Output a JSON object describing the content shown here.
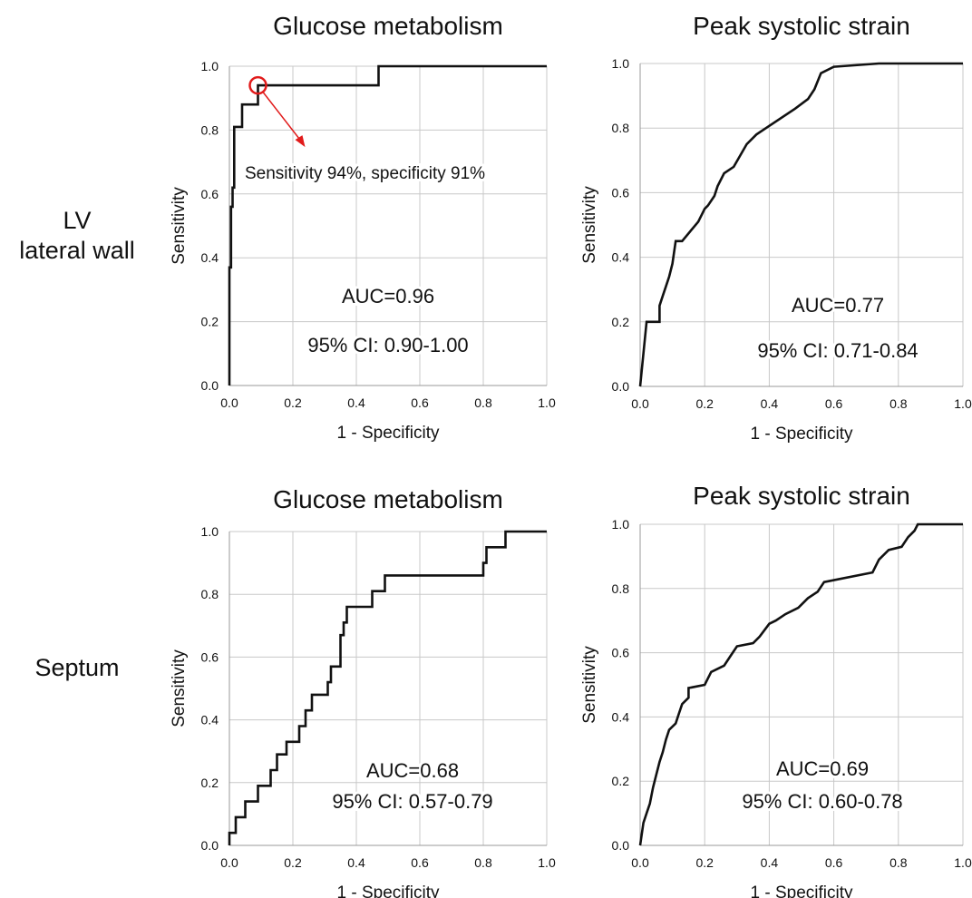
{
  "row_labels": {
    "row1": [
      "LV",
      "lateral wall"
    ],
    "row2": "Septum"
  },
  "colors": {
    "curve": "#111111",
    "grid": "#c8c8c8",
    "highlight": "#e11b1b"
  },
  "chart_data": [
    {
      "type": "line",
      "title": "Glucose metabolism",
      "xlabel": "1 - Specificity",
      "ylabel": "Sensitivity",
      "xlim": [
        0,
        1
      ],
      "ylim": [
        0,
        1
      ],
      "xticks": [
        "0.0",
        "0.2",
        "0.4",
        "0.6",
        "0.8",
        "1.0"
      ],
      "yticks": [
        "0.0",
        "0.2",
        "0.4",
        "0.6",
        "0.8",
        "1.0"
      ],
      "grid": true,
      "annotations": [
        "AUC=0.96",
        "95% CI: 0.90-1.00"
      ],
      "highlight": {
        "x": 0.09,
        "y": 0.94,
        "text": "Sensitivity 94%, specificity 91%"
      },
      "series": [
        {
          "x": [
            0,
            0,
            0.005,
            0.005,
            0.01,
            0.01,
            0.015,
            0.015,
            0.04,
            0.04,
            0.09,
            0.09,
            0.47,
            0.47,
            1.0
          ],
          "y": [
            0,
            0.37,
            0.37,
            0.56,
            0.56,
            0.62,
            0.62,
            0.81,
            0.81,
            0.88,
            0.88,
            0.94,
            0.94,
            1.0,
            1.0
          ]
        }
      ]
    },
    {
      "type": "line",
      "title": "Peak systolic strain",
      "xlabel": "1 - Specificity",
      "ylabel": "Sensitivity",
      "xlim": [
        0,
        1
      ],
      "ylim": [
        0,
        1
      ],
      "xticks": [
        "0.0",
        "0.2",
        "0.4",
        "0.6",
        "0.8",
        "1.0"
      ],
      "yticks": [
        "0.0",
        "0.2",
        "0.4",
        "0.6",
        "0.8",
        "1.0"
      ],
      "grid": true,
      "annotations": [
        "AUC=0.77",
        "95% CI: 0.71-0.84"
      ],
      "series": [
        {
          "x": [
            0,
            0.02,
            0.06,
            0.06,
            0.07,
            0.08,
            0.09,
            0.1,
            0.11,
            0.13,
            0.18,
            0.2,
            0.21,
            0.23,
            0.24,
            0.26,
            0.29,
            0.33,
            0.36,
            0.39,
            0.48,
            0.52,
            0.54,
            0.56,
            0.6,
            0.74,
            1.0
          ],
          "y": [
            0,
            0.2,
            0.2,
            0.25,
            0.28,
            0.31,
            0.34,
            0.38,
            0.45,
            0.45,
            0.51,
            0.55,
            0.56,
            0.59,
            0.62,
            0.66,
            0.68,
            0.75,
            0.78,
            0.8,
            0.86,
            0.89,
            0.92,
            0.97,
            0.99,
            1.0,
            1.0
          ]
        }
      ]
    },
    {
      "type": "line",
      "title": "Glucose metabolism",
      "xlabel": "1 - Specificity",
      "ylabel": "Sensitivity",
      "xlim": [
        0,
        1
      ],
      "ylim": [
        0,
        1
      ],
      "xticks": [
        "0.0",
        "0.2",
        "0.4",
        "0.6",
        "0.8",
        "1.0"
      ],
      "yticks": [
        "0.0",
        "0.2",
        "0.4",
        "0.6",
        "0.8",
        "1.0"
      ],
      "grid": true,
      "annotations": [
        "AUC=0.68",
        "95% CI: 0.57-0.79"
      ],
      "series": [
        {
          "x": [
            0,
            0,
            0.02,
            0.02,
            0.05,
            0.05,
            0.09,
            0.09,
            0.13,
            0.13,
            0.15,
            0.15,
            0.18,
            0.18,
            0.22,
            0.22,
            0.24,
            0.24,
            0.26,
            0.26,
            0.31,
            0.31,
            0.32,
            0.32,
            0.35,
            0.35,
            0.36,
            0.36,
            0.37,
            0.37,
            0.45,
            0.45,
            0.49,
            0.49,
            0.53,
            0.53,
            0.8,
            0.8,
            0.81,
            0.81,
            0.87,
            0.87,
            1.0
          ],
          "y": [
            0,
            0.04,
            0.04,
            0.09,
            0.09,
            0.14,
            0.14,
            0.19,
            0.19,
            0.24,
            0.24,
            0.29,
            0.29,
            0.33,
            0.33,
            0.38,
            0.38,
            0.43,
            0.43,
            0.48,
            0.48,
            0.52,
            0.52,
            0.57,
            0.57,
            0.67,
            0.67,
            0.71,
            0.71,
            0.76,
            0.76,
            0.81,
            0.81,
            0.86,
            0.86,
            0.86,
            0.86,
            0.9,
            0.9,
            0.95,
            0.95,
            1.0,
            1.0
          ]
        }
      ]
    },
    {
      "type": "line",
      "title": "Peak systolic strain",
      "xlabel": "1 - Specificity",
      "ylabel": "Sensitivity",
      "xlim": [
        0,
        1
      ],
      "ylim": [
        0,
        1
      ],
      "xticks": [
        "0.0",
        "0.2",
        "0.4",
        "0.6",
        "0.8",
        "1.0"
      ],
      "yticks": [
        "0.0",
        "0.2",
        "0.4",
        "0.6",
        "0.8",
        "1.0"
      ],
      "grid": true,
      "annotations": [
        "AUC=0.69",
        "95% CI: 0.60-0.78"
      ],
      "series": [
        {
          "x": [
            0,
            0.01,
            0.02,
            0.03,
            0.04,
            0.05,
            0.06,
            0.07,
            0.08,
            0.09,
            0.11,
            0.12,
            0.13,
            0.15,
            0.15,
            0.2,
            0.22,
            0.26,
            0.28,
            0.3,
            0.35,
            0.37,
            0.4,
            0.42,
            0.45,
            0.49,
            0.52,
            0.55,
            0.57,
            0.72,
            0.74,
            0.77,
            0.81,
            0.83,
            0.85,
            0.86,
            1.0
          ],
          "y": [
            0,
            0.07,
            0.1,
            0.13,
            0.18,
            0.22,
            0.26,
            0.29,
            0.33,
            0.36,
            0.38,
            0.41,
            0.44,
            0.46,
            0.49,
            0.5,
            0.54,
            0.56,
            0.59,
            0.62,
            0.63,
            0.65,
            0.69,
            0.7,
            0.72,
            0.74,
            0.77,
            0.79,
            0.82,
            0.85,
            0.89,
            0.92,
            0.93,
            0.96,
            0.98,
            1.0,
            1.0
          ]
        }
      ]
    }
  ]
}
